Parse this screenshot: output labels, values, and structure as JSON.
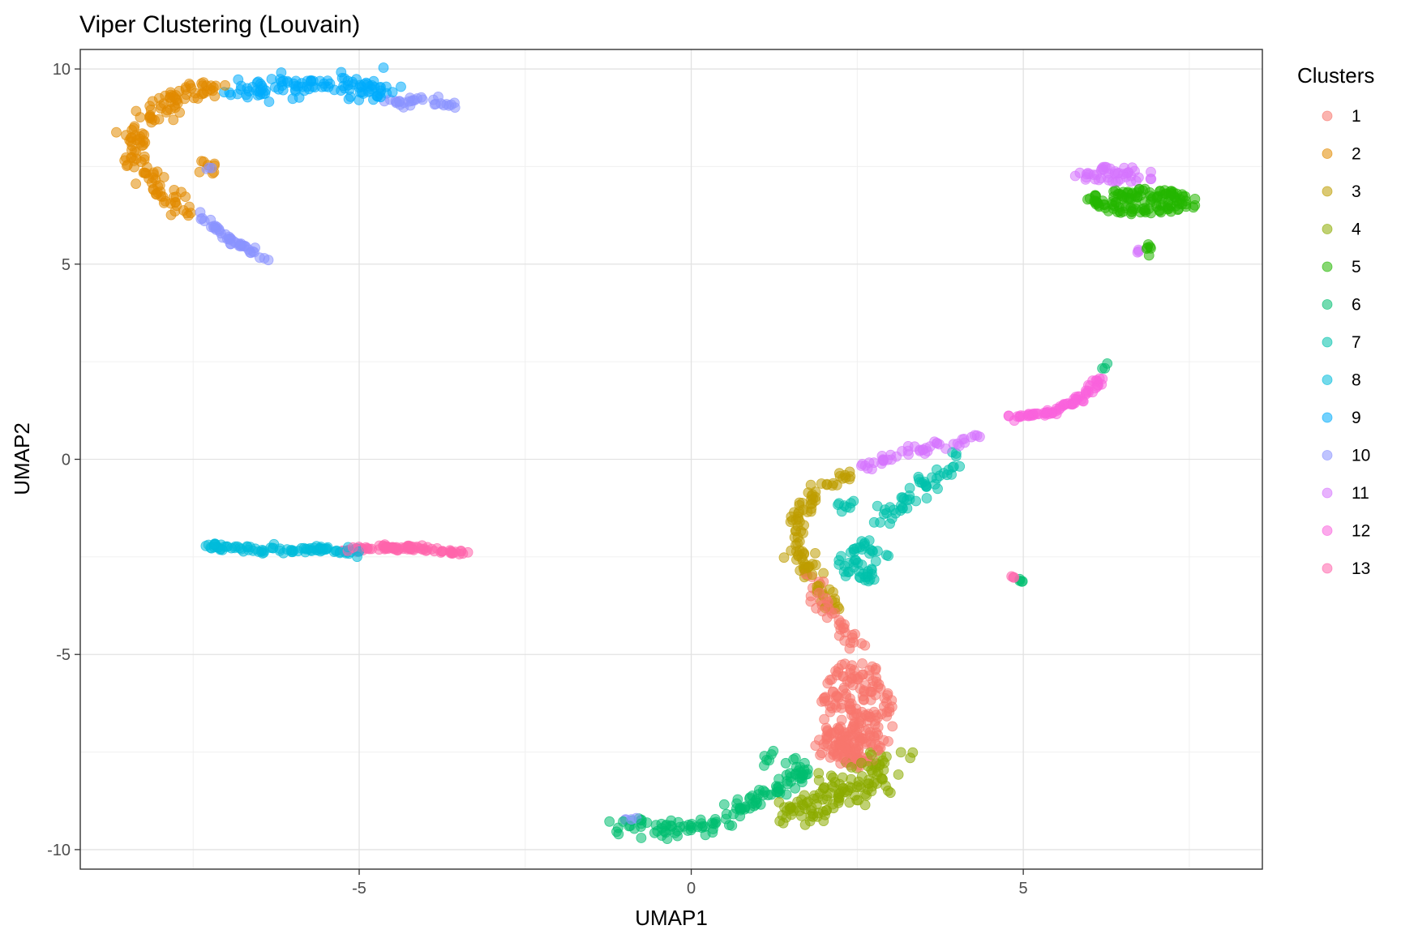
{
  "chart_data": {
    "type": "scatter",
    "title": "Viper Clustering (Louvain)",
    "xlabel": "UMAP1",
    "ylabel": "UMAP2",
    "xlim": [
      -9.2,
      8.6
    ],
    "ylim": [
      -10.5,
      10.5
    ],
    "x_ticks": [
      -5,
      0,
      5
    ],
    "y_ticks": [
      -10,
      -5,
      0,
      5,
      10
    ],
    "x_tick_labels": [
      "-5",
      "0",
      "5"
    ],
    "y_tick_labels": [
      "-10",
      "-5",
      "0",
      "5",
      "10"
    ],
    "grid": true,
    "legend": {
      "title": "Clusters",
      "position": "right"
    },
    "point_opacity": 0.55,
    "series": [
      {
        "name": "1",
        "color": "#F8766D",
        "regions": [
          {
            "type": "ellipse",
            "cx": 2.5,
            "cy": -6.5,
            "rx": 0.55,
            "ry": 1.4,
            "n": 200
          },
          {
            "type": "curve",
            "points": [
              [
                1.8,
                -3.0
              ],
              [
                2.1,
                -3.8
              ],
              [
                2.5,
                -4.8
              ]
            ],
            "spread": 0.15,
            "n": 40
          },
          {
            "type": "ellipse",
            "cx": 2.3,
            "cy": -7.3,
            "rx": 0.45,
            "ry": 0.5,
            "n": 50
          }
        ]
      },
      {
        "name": "2",
        "color": "#E18A00",
        "regions": [
          {
            "type": "curve",
            "points": [
              [
                -6.9,
                9.6
              ],
              [
                -7.7,
                9.3
              ],
              [
                -8.3,
                8.5
              ],
              [
                -8.4,
                7.7
              ],
              [
                -8.0,
                7.0
              ],
              [
                -7.6,
                6.4
              ]
            ],
            "spread": 0.18,
            "n": 140
          },
          {
            "type": "ellipse",
            "cx": -7.3,
            "cy": 7.4,
            "rx": 0.15,
            "ry": 0.3,
            "n": 8
          }
        ]
      },
      {
        "name": "3",
        "color": "#BE9C00",
        "regions": [
          {
            "type": "curve",
            "points": [
              [
                2.4,
                -0.4
              ],
              [
                1.9,
                -0.8
              ],
              [
                1.6,
                -1.6
              ],
              [
                1.6,
                -2.5
              ],
              [
                1.9,
                -3.2
              ],
              [
                2.2,
                -3.8
              ]
            ],
            "spread": 0.12,
            "n": 100
          }
        ]
      },
      {
        "name": "4",
        "color": "#8CAB00",
        "regions": [
          {
            "type": "curve",
            "points": [
              [
                1.5,
                -9.1
              ],
              [
                2.0,
                -8.8
              ],
              [
                2.5,
                -8.3
              ],
              [
                3.0,
                -7.7
              ]
            ],
            "spread": 0.3,
            "n": 130
          }
        ]
      },
      {
        "name": "5",
        "color": "#24B700",
        "regions": [
          {
            "type": "ellipse",
            "cx": 6.8,
            "cy": 6.6,
            "rx": 0.85,
            "ry": 0.33,
            "n": 130
          },
          {
            "type": "curve",
            "points": [
              [
                6.9,
                5.7
              ],
              [
                6.85,
                5.1
              ]
            ],
            "spread": 0.04,
            "n": 6
          }
        ]
      },
      {
        "name": "6",
        "color": "#00BE70",
        "regions": [
          {
            "type": "curve",
            "points": [
              [
                -1.1,
                -9.3
              ],
              [
                -0.5,
                -9.5
              ],
              [
                0.2,
                -9.4
              ],
              [
                0.8,
                -8.9
              ],
              [
                1.4,
                -8.3
              ],
              [
                1.7,
                -7.8
              ]
            ],
            "spread": 0.18,
            "n": 130
          },
          {
            "type": "curve",
            "points": [
              [
                1.2,
                -7.2
              ],
              [
                1.1,
                -8.0
              ]
            ],
            "spread": 0.05,
            "n": 6
          },
          {
            "type": "curve",
            "points": [
              [
                4.9,
                -3.05
              ],
              [
                5.0,
                -3.15
              ]
            ],
            "spread": 0.02,
            "n": 4
          },
          {
            "type": "curve",
            "points": [
              [
                6.2,
                2.3
              ],
              [
                6.3,
                2.5
              ]
            ],
            "spread": 0.02,
            "n": 3
          }
        ]
      },
      {
        "name": "7",
        "color": "#00C1AB",
        "regions": [
          {
            "type": "ellipse",
            "cx": 2.6,
            "cy": -2.6,
            "rx": 0.4,
            "ry": 0.55,
            "n": 50
          },
          {
            "type": "curve",
            "points": [
              [
                2.8,
                -1.6
              ],
              [
                3.3,
                -1.0
              ],
              [
                3.8,
                -0.4
              ],
              [
                4.0,
                0.1
              ]
            ],
            "spread": 0.15,
            "n": 50
          },
          {
            "type": "ellipse",
            "cx": 2.3,
            "cy": -1.2,
            "rx": 0.2,
            "ry": 0.2,
            "n": 8
          }
        ]
      },
      {
        "name": "8",
        "color": "#00BBDA",
        "regions": [
          {
            "type": "curve",
            "points": [
              [
                -7.3,
                -2.2
              ],
              [
                -6.5,
                -2.35
              ],
              [
                -5.5,
                -2.3
              ],
              [
                -5.0,
                -2.4
              ]
            ],
            "spread": 0.06,
            "n": 90
          }
        ]
      },
      {
        "name": "9",
        "color": "#00ACFC",
        "regions": [
          {
            "type": "curve",
            "points": [
              [
                -6.8,
                9.4
              ],
              [
                -6.1,
                9.6
              ],
              [
                -5.2,
                9.55
              ],
              [
                -4.5,
                9.4
              ]
            ],
            "spread": 0.22,
            "n": 110
          }
        ]
      },
      {
        "name": "10",
        "color": "#8B93FF",
        "regions": [
          {
            "type": "curve",
            "points": [
              [
                -7.4,
                6.3
              ],
              [
                -7.0,
                5.7
              ],
              [
                -6.7,
                5.4
              ],
              [
                -6.4,
                5.1
              ]
            ],
            "spread": 0.07,
            "n": 45
          },
          {
            "type": "curve",
            "points": [
              [
                -4.6,
                9.1
              ],
              [
                -4.1,
                9.2
              ],
              [
                -3.5,
                9.0
              ]
            ],
            "spread": 0.09,
            "n": 30
          },
          {
            "type": "curve",
            "points": [
              [
                -7.3,
                7.45
              ],
              [
                -7.1,
                7.45
              ]
            ],
            "spread": 0.02,
            "n": 3
          },
          {
            "type": "curve",
            "points": [
              [
                -1.2,
                -9.25
              ],
              [
                -0.8,
                -9.2
              ]
            ],
            "spread": 0.04,
            "n": 4
          }
        ]
      },
      {
        "name": "11",
        "color": "#D575FE",
        "regions": [
          {
            "type": "curve",
            "points": [
              [
                2.5,
                -0.3
              ],
              [
                3.2,
                0.2
              ],
              [
                3.9,
                0.4
              ],
              [
                4.4,
                0.7
              ]
            ],
            "spread": 0.08,
            "n": 45
          },
          {
            "type": "ellipse",
            "cx": 6.4,
            "cy": 7.3,
            "rx": 0.7,
            "ry": 0.2,
            "n": 45
          },
          {
            "type": "curve",
            "points": [
              [
                6.7,
                5.3
              ],
              [
                6.75,
                5.35
              ]
            ],
            "spread": 0.02,
            "n": 3
          }
        ]
      },
      {
        "name": "12",
        "color": "#F962DD",
        "regions": [
          {
            "type": "curve",
            "points": [
              [
                4.8,
                1.05
              ],
              [
                5.4,
                1.2
              ],
              [
                5.9,
                1.6
              ],
              [
                6.2,
                2.1
              ]
            ],
            "spread": 0.06,
            "n": 75
          }
        ]
      },
      {
        "name": "13",
        "color": "#FF65AC",
        "regions": [
          {
            "type": "curve",
            "points": [
              [
                -5.3,
                -2.35
              ],
              [
                -4.6,
                -2.25
              ],
              [
                -4.0,
                -2.3
              ],
              [
                -3.4,
                -2.4
              ]
            ],
            "spread": 0.05,
            "n": 90
          },
          {
            "type": "curve",
            "points": [
              [
                4.8,
                -3.0
              ],
              [
                4.9,
                -3.05
              ]
            ],
            "spread": 0.02,
            "n": 3
          }
        ]
      }
    ]
  }
}
